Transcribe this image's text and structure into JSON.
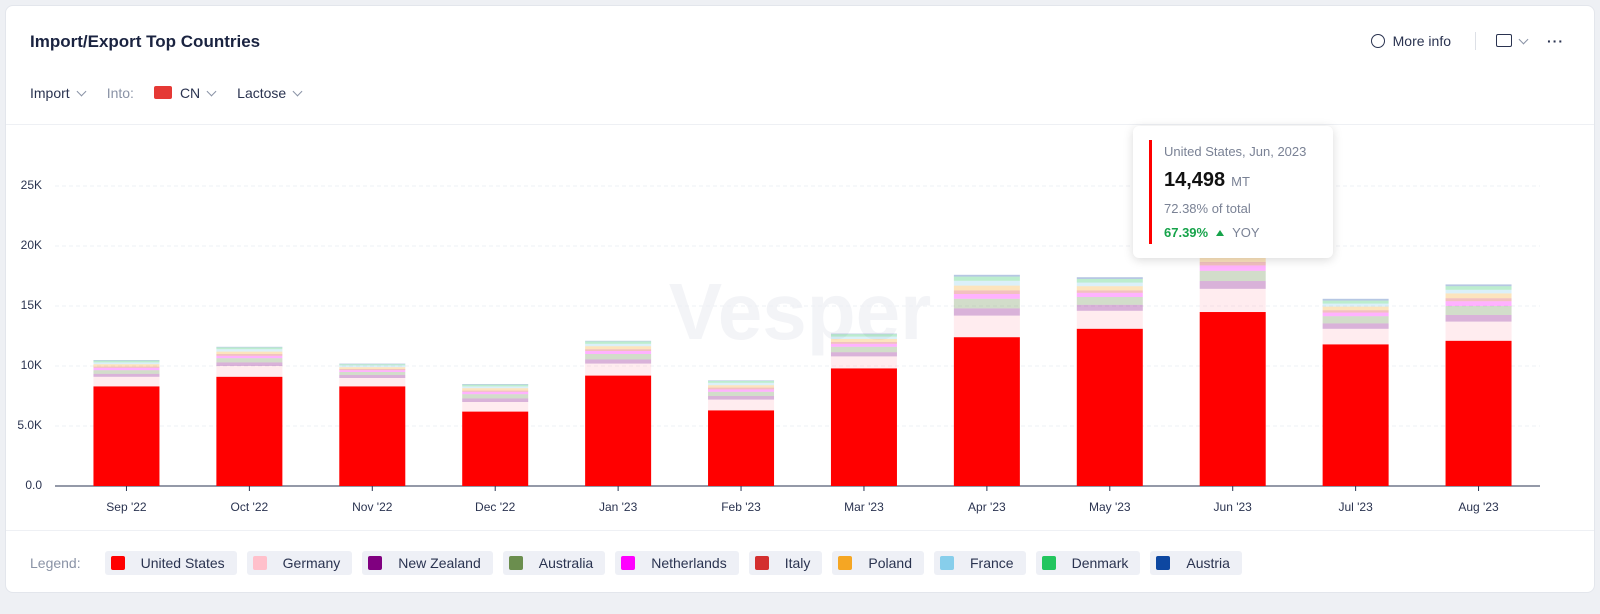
{
  "header": {
    "title": "Import/Export Top Countries",
    "more_info": "More info"
  },
  "filters": {
    "flow": "Import",
    "into_label": "Into:",
    "country": "CN",
    "product": "Lactose"
  },
  "watermark": "Vesper",
  "legend_label": "Legend:",
  "tooltip": {
    "title": "United States, Jun, 2023",
    "value": "14,498",
    "unit": "MT",
    "share": "72.38% of total",
    "change": "67.39%",
    "change_label": "YOY"
  },
  "chart_data": {
    "type": "stacked_bar",
    "categories": [
      "Sep '22",
      "Oct '22",
      "Nov '22",
      "Dec '22",
      "Jan '23",
      "Feb '23",
      "Mar '23",
      "Apr '23",
      "May '23",
      "Jun '23",
      "Jul '23",
      "Aug '23"
    ],
    "series": [
      {
        "name": "United States",
        "color": "#ff0000",
        "values": [
          8300,
          9100,
          8300,
          6200,
          9200,
          6300,
          9800,
          12400,
          13100,
          14498,
          11800,
          12100
        ]
      },
      {
        "name": "Germany",
        "color": "#ffc0cb",
        "values": [
          800,
          900,
          700,
          800,
          1000,
          900,
          1000,
          1800,
          1500,
          1932,
          1300,
          1600
        ]
      },
      {
        "name": "New Zealand",
        "color": "#800080",
        "values": [
          250,
          300,
          250,
          300,
          350,
          300,
          350,
          600,
          500,
          650,
          450,
          550
        ]
      },
      {
        "name": "Australia",
        "color": "#6b8e4e",
        "values": [
          300,
          350,
          250,
          350,
          450,
          350,
          450,
          800,
          650,
          850,
          600,
          750
        ]
      },
      {
        "name": "Netherlands",
        "color": "#ff00ff",
        "values": [
          200,
          200,
          150,
          200,
          250,
          200,
          250,
          400,
          350,
          450,
          300,
          400
        ]
      },
      {
        "name": "Italy",
        "color": "#d32f2f",
        "values": [
          100,
          150,
          100,
          100,
          150,
          150,
          150,
          300,
          200,
          300,
          200,
          250
        ]
      },
      {
        "name": "Poland",
        "color": "#f5a623",
        "values": [
          200,
          200,
          150,
          200,
          250,
          200,
          250,
          400,
          350,
          450,
          300,
          400
        ]
      },
      {
        "name": "France",
        "color": "#87ceeb",
        "values": [
          150,
          200,
          150,
          150,
          200,
          200,
          200,
          400,
          300,
          400,
          250,
          300
        ]
      },
      {
        "name": "Denmark",
        "color": "#22c55e",
        "values": [
          150,
          150,
          100,
          150,
          200,
          150,
          200,
          350,
          300,
          350,
          250,
          300
        ]
      },
      {
        "name": "Austria",
        "color": "#0d47a1",
        "values": [
          50,
          50,
          50,
          50,
          50,
          50,
          50,
          150,
          150,
          150,
          150,
          150
        ]
      }
    ],
    "ylim": [
      0,
      30000
    ],
    "yticks": [
      {
        "value": 0,
        "label": "0.0"
      },
      {
        "value": 5000,
        "label": "5.0K"
      },
      {
        "value": 10000,
        "label": "10K"
      },
      {
        "value": 15000,
        "label": "15K"
      },
      {
        "value": 20000,
        "label": "20K"
      },
      {
        "value": 25000,
        "label": "25K"
      }
    ],
    "grid": true
  }
}
